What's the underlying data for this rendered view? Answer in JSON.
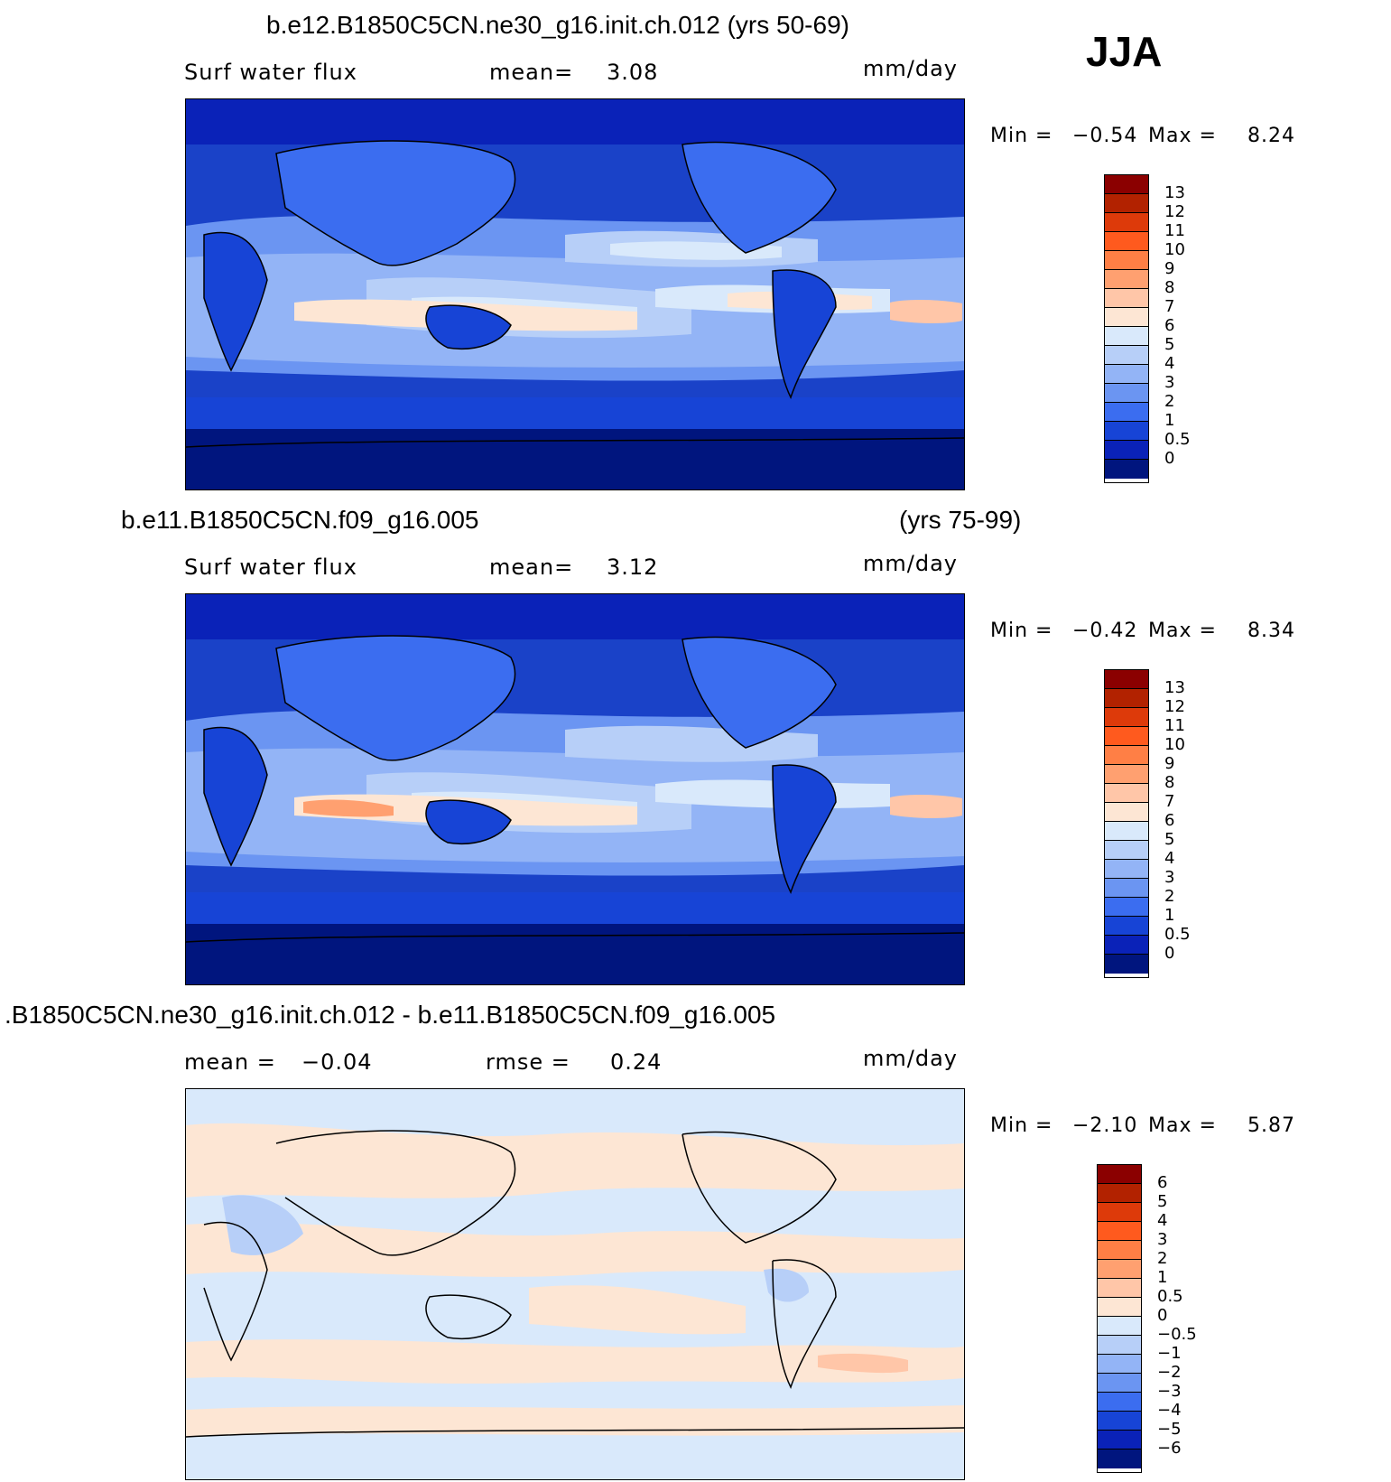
{
  "season": "JJA",
  "panels": [
    {
      "title_left": "b.e12.B1850C5CN.ne30_g16.init.ch.012 (yrs 50-69)",
      "title_right": "",
      "sub_left": "Surf water flux",
      "sub_mid_label": "mean=",
      "sub_mid_value": "3.08",
      "units": "mm/day",
      "min_label": "Min =",
      "min_value": "−0.54",
      "max_label": "Max =",
      "max_value": "8.24",
      "colorbar_labels": [
        "13",
        "12",
        "11",
        "10",
        "9",
        "8",
        "7",
        "6",
        "5",
        "4",
        "3",
        "2",
        "1",
        "0.5",
        "0"
      ]
    },
    {
      "title_left": "b.e11.B1850C5CN.f09_g16.005",
      "title_right": "(yrs 75-99)",
      "sub_left": "Surf water flux",
      "sub_mid_label": "mean=",
      "sub_mid_value": "3.12",
      "units": "mm/day",
      "min_label": "Min =",
      "min_value": "−0.42",
      "max_label": "Max =",
      "max_value": "8.34",
      "colorbar_labels": [
        "13",
        "12",
        "11",
        "10",
        "9",
        "8",
        "7",
        "6",
        "5",
        "4",
        "3",
        "2",
        "1",
        "0.5",
        "0"
      ]
    },
    {
      "title_left": ".B1850C5CN.ne30_g16.init.ch.012 - b.e11.B1850C5CN.f09_g16.005",
      "title_right": "",
      "sub_left_label": "mean =",
      "sub_left_value": "−0.04",
      "sub_mid_label": "rmse =",
      "sub_mid_value": "0.24",
      "units": "mm/day",
      "min_label": "Min =",
      "min_value": "−2.10",
      "max_label": "Max =",
      "max_value": "5.87",
      "colorbar_labels": [
        "6",
        "5",
        "4",
        "3",
        "2",
        "1",
        "0.5",
        "0",
        "−0.5",
        "−1",
        "−2",
        "−3",
        "−4",
        "−5",
        "−6"
      ]
    }
  ],
  "colors": {
    "flux_scale": [
      "#8b0000",
      "#b22200",
      "#dd3a0a",
      "#ff5a1e",
      "#ff7f45",
      "#ffa070",
      "#ffc6a8",
      "#fde6d4",
      "#d9e9fb",
      "#b7cff8",
      "#93b4f6",
      "#6b95f2",
      "#3b6df0",
      "#1744d6",
      "#0a22b8",
      "#00157e"
    ],
    "diff_scale": [
      "#8b0000",
      "#b22200",
      "#dd3a0a",
      "#ff5a1e",
      "#ff7f45",
      "#ffa070",
      "#ffc6a8",
      "#fde6d4",
      "#d9e9fb",
      "#b7cff8",
      "#93b4f6",
      "#6b95f2",
      "#3b6df0",
      "#1744d6",
      "#0a22b8",
      "#00157e"
    ]
  }
}
